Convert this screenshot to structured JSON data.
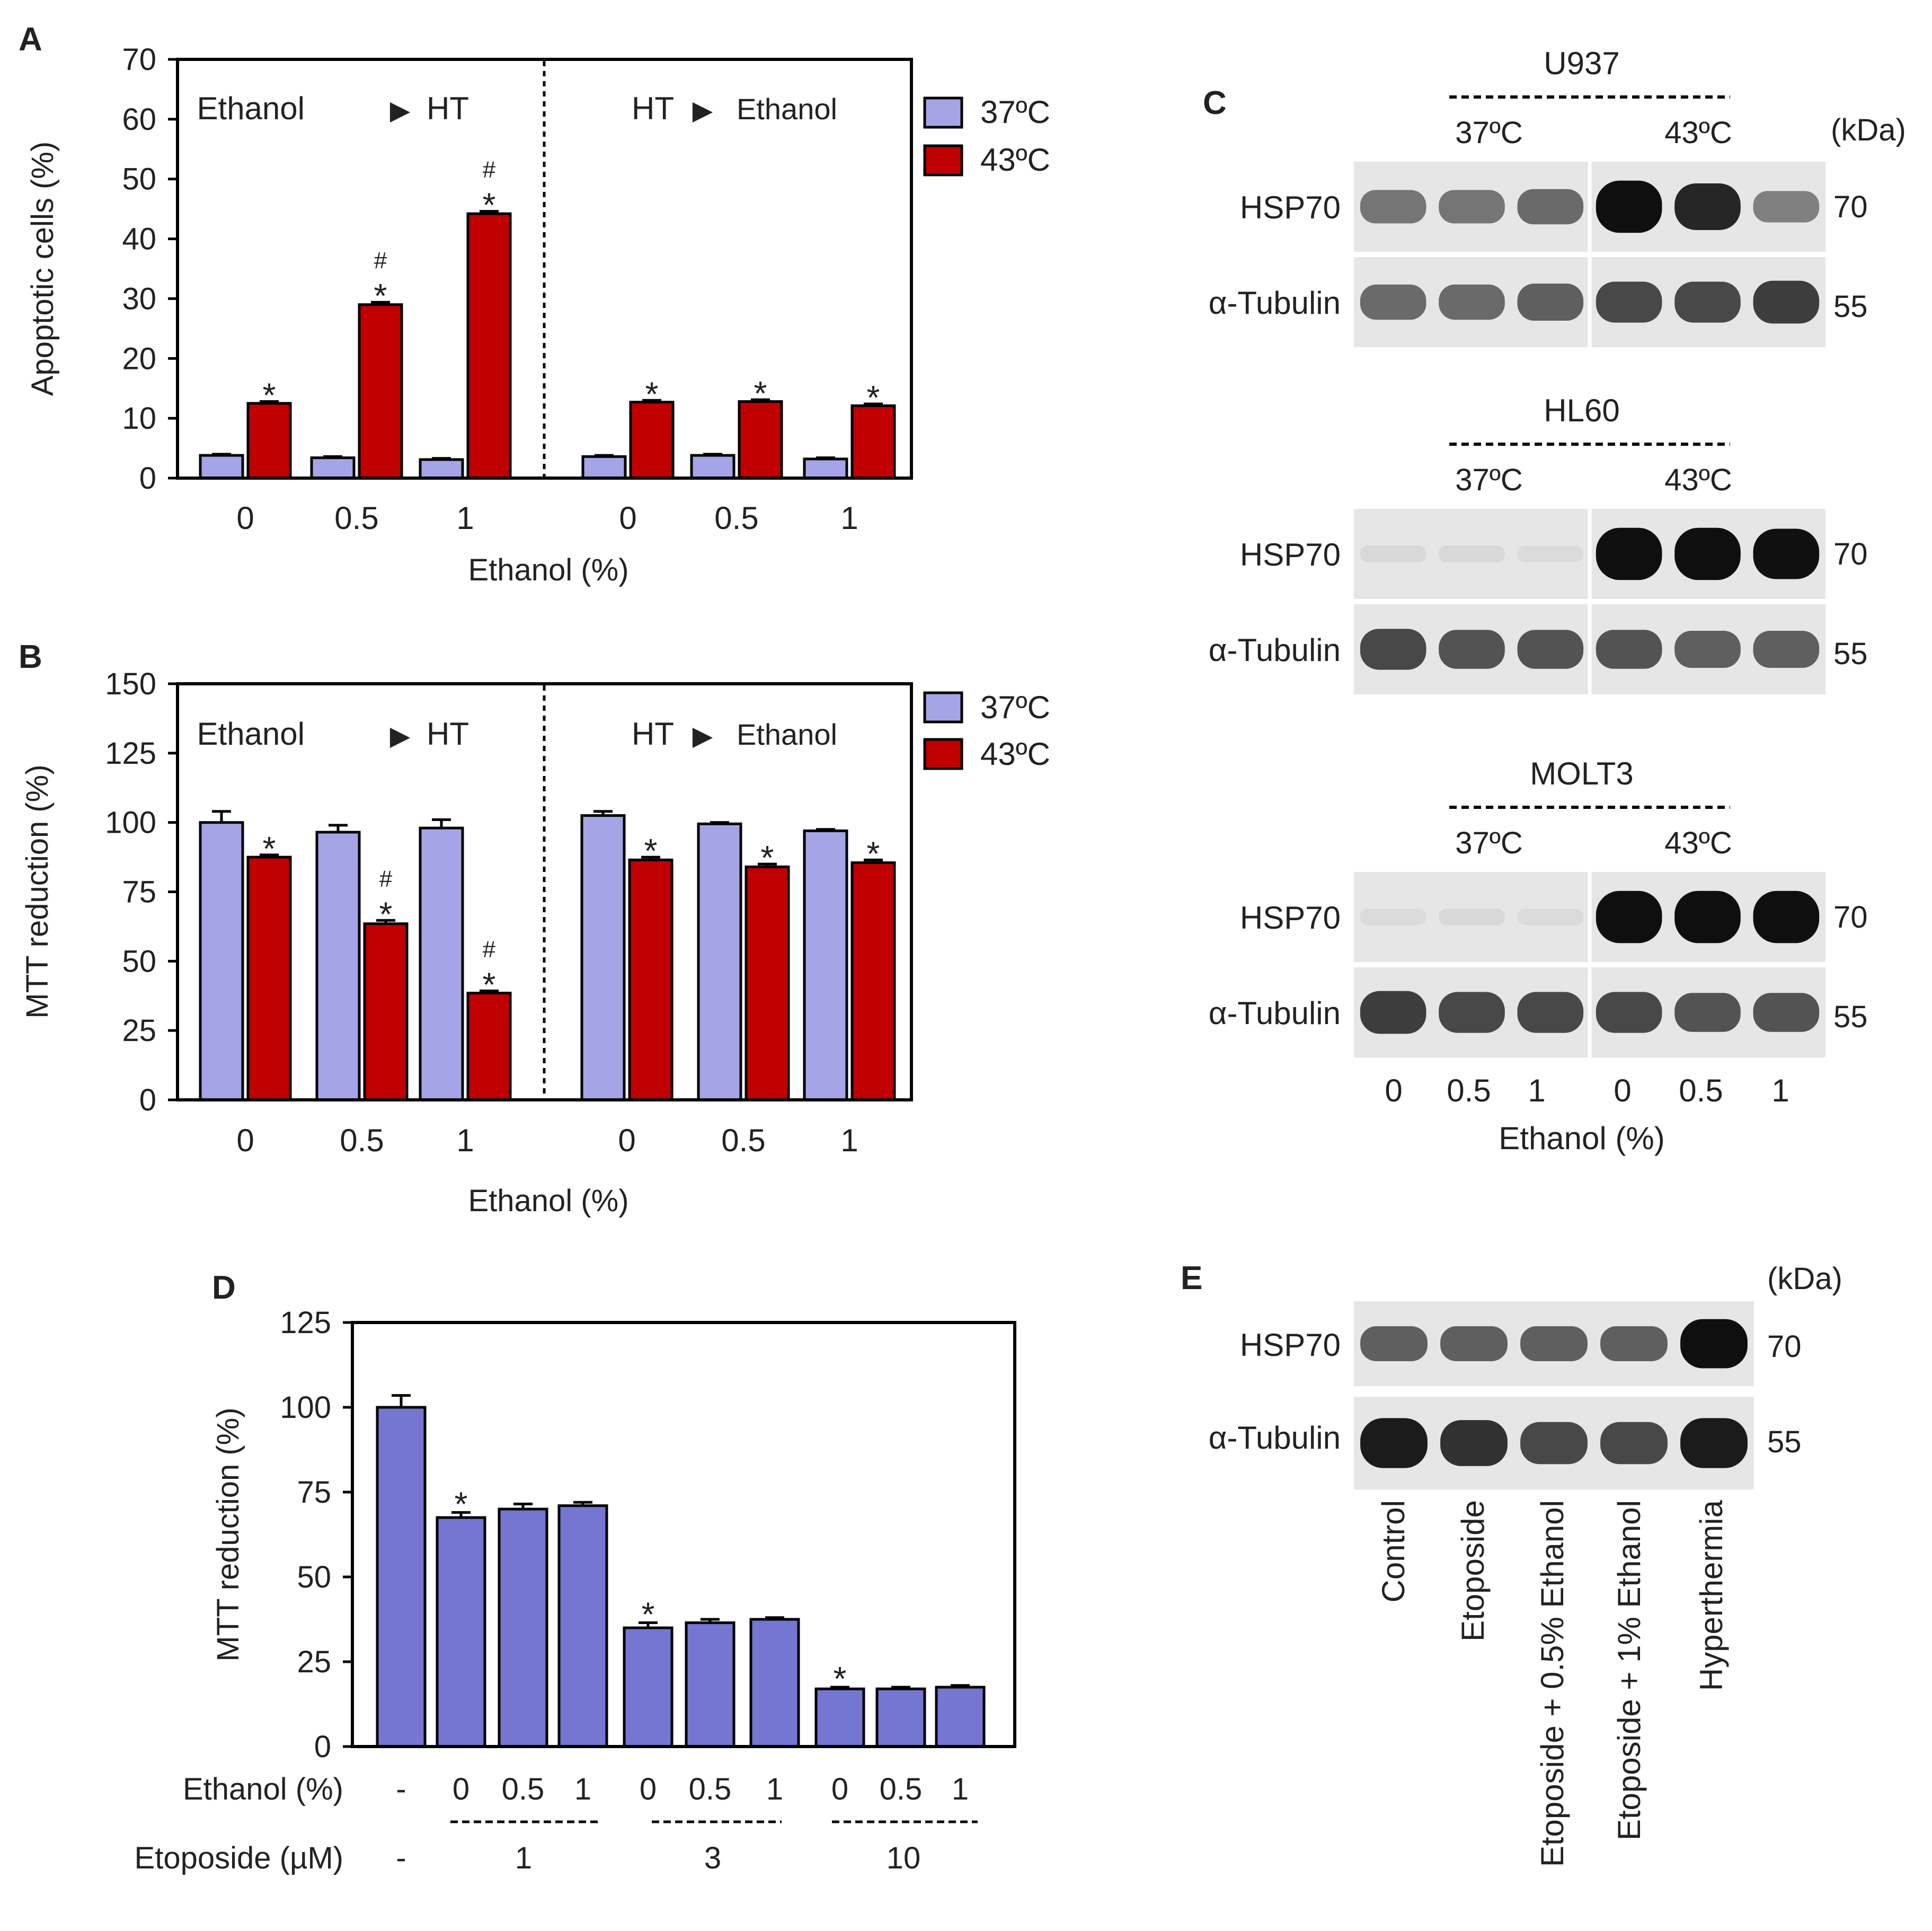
{
  "colors": {
    "c37": "#a4a4e6",
    "c43": "#c00000",
    "etoposide_bar": "#7575d2",
    "axis": "#000000",
    "blot_bg": "#e8e8e8",
    "band": "#1a1a1a"
  },
  "legend": {
    "c37": "37ºC",
    "c43": "43ºC"
  },
  "chart_data": [
    {
      "id": "A",
      "panel_letter": "A",
      "type": "bar",
      "ylabel": "Apoptotic cells (%)",
      "xlabel": "Ethanol (%)",
      "ylim": [
        0,
        70
      ],
      "yticks": [
        "0",
        "10",
        "20",
        "30",
        "40",
        "50",
        "60",
        "70"
      ],
      "section_labels": [
        {
          "left": "Ethanol",
          "right": "HT"
        },
        {
          "left": "HT",
          "right": "Ethanol"
        }
      ],
      "categories": [
        "0",
        "0.5",
        "1",
        "0",
        "0.5",
        "1"
      ],
      "series": [
        {
          "name": "37ºC",
          "values": [
            3.8,
            3.4,
            3.1,
            3.6,
            3.8,
            3.2
          ],
          "errors": [
            0.2,
            0.2,
            0.2,
            0.2,
            0.2,
            0.2
          ]
        },
        {
          "name": "43ºC",
          "values": [
            12.5,
            29.0,
            44.2,
            12.7,
            12.8,
            12.1
          ],
          "errors": [
            0.3,
            0.4,
            0.4,
            0.3,
            0.3,
            0.3
          ]
        }
      ],
      "annotations": [
        {
          "group": 0,
          "series": 1,
          "text": "*"
        },
        {
          "group": 1,
          "series": 1,
          "text": "*"
        },
        {
          "group": 1,
          "series": 1,
          "text": "#"
        },
        {
          "group": 2,
          "series": 1,
          "text": "*"
        },
        {
          "group": 2,
          "series": 1,
          "text": "#"
        },
        {
          "group": 3,
          "series": 1,
          "text": "*"
        },
        {
          "group": 4,
          "series": 1,
          "text": "*"
        },
        {
          "group": 5,
          "series": 1,
          "text": "*"
        }
      ]
    },
    {
      "id": "B",
      "panel_letter": "B",
      "type": "bar",
      "ylabel": "MTT reduction (%)",
      "xlabel": "Ethanol (%)",
      "ylim": [
        0,
        150
      ],
      "yticks": [
        "0",
        "25",
        "50",
        "75",
        "100",
        "125",
        "150"
      ],
      "section_labels": [
        {
          "left": "Ethanol",
          "right": "HT"
        },
        {
          "left": "HT",
          "right": "Ethanol"
        }
      ],
      "categories": [
        "0",
        "0.5",
        "1",
        "0",
        "0.5",
        "1"
      ],
      "series": [
        {
          "name": "37ºC",
          "values": [
            100,
            96.5,
            98,
            102.5,
            99.5,
            97
          ],
          "errors": [
            4,
            2.5,
            3,
            1.5,
            0.5,
            0.5
          ]
        },
        {
          "name": "43ºC",
          "values": [
            87.5,
            63.5,
            38.5,
            86.5,
            84,
            85.5
          ],
          "errors": [
            0.8,
            1.2,
            0.8,
            1,
            1,
            1
          ]
        }
      ],
      "annotations": [
        {
          "group": 0,
          "series": 1,
          "text": "*"
        },
        {
          "group": 1,
          "series": 1,
          "text": "*"
        },
        {
          "group": 1,
          "series": 1,
          "text": "#"
        },
        {
          "group": 2,
          "series": 1,
          "text": "*"
        },
        {
          "group": 2,
          "series": 1,
          "text": "#"
        },
        {
          "group": 3,
          "series": 1,
          "text": "*"
        },
        {
          "group": 4,
          "series": 1,
          "text": "*"
        },
        {
          "group": 5,
          "series": 1,
          "text": "*"
        }
      ]
    },
    {
      "id": "D",
      "panel_letter": "D",
      "type": "bar",
      "ylabel": "MTT reduction  (%)",
      "ylim": [
        0,
        125
      ],
      "yticks": [
        "0",
        "25",
        "50",
        "75",
        "100",
        "125"
      ],
      "row_labels": [
        "Ethanol (%)",
        "Etoposide (µM)"
      ],
      "ethanol_labels": [
        "-",
        "0",
        "0.5",
        "1",
        "0",
        "0.5",
        "1",
        "0",
        "0.5",
        "1"
      ],
      "etoposide_labels": [
        "-",
        "1",
        "3",
        "10"
      ],
      "values": [
        100,
        67.5,
        70,
        71,
        35,
        36.5,
        37.5,
        17,
        17,
        17.5
      ],
      "errors": [
        3.5,
        1.5,
        1.5,
        1,
        1.5,
        1,
        0.5,
        0.5,
        0.5,
        0.5
      ],
      "annotations": [
        {
          "bar": 1,
          "text": "*"
        },
        {
          "bar": 4,
          "text": "*"
        },
        {
          "bar": 7,
          "text": "*"
        }
      ]
    }
  ],
  "panel_c": {
    "letter": "C",
    "kda": "(kDa)",
    "temp_labels": [
      "37ºC",
      "43ºC"
    ],
    "cells": [
      {
        "name": "U937",
        "hsp70_intensity": [
          0.5,
          0.5,
          0.55,
          1.0,
          0.85,
          0.45
        ],
        "tubulin_intensity": [
          0.55,
          0.55,
          0.6,
          0.7,
          0.7,
          0.75
        ]
      },
      {
        "name": "HL60",
        "hsp70_intensity": [
          0.06,
          0.06,
          0.05,
          1.0,
          1.0,
          0.95
        ],
        "tubulin_intensity": [
          0.7,
          0.65,
          0.65,
          0.65,
          0.6,
          0.6
        ]
      },
      {
        "name": "MOLT3",
        "hsp70_intensity": [
          0.05,
          0.06,
          0.05,
          1.0,
          1.0,
          1.0
        ],
        "tubulin_intensity": [
          0.75,
          0.7,
          0.7,
          0.7,
          0.65,
          0.65
        ]
      }
    ],
    "row_labels": [
      "HSP70",
      "α-Tubulin"
    ],
    "mw": [
      "70",
      "55"
    ],
    "lane_labels": [
      "0",
      "0.5",
      "1",
      "0",
      "0.5",
      "1"
    ],
    "xlabel": "Ethanol (%)"
  },
  "panel_e": {
    "letter": "E",
    "kda": "(kDa)",
    "row_labels": [
      "HSP70",
      "α-Tubulin"
    ],
    "mw": [
      "70",
      "55"
    ],
    "hsp70_intensity": [
      0.6,
      0.6,
      0.6,
      0.6,
      1.0
    ],
    "tubulin_intensity": [
      0.9,
      0.8,
      0.7,
      0.7,
      0.9
    ],
    "lanes": [
      "Control",
      "Etoposide",
      "Etoposide + 0.5% Ethanol",
      "Etoposide + 1% Ethanol",
      "Hyperthermia"
    ]
  }
}
